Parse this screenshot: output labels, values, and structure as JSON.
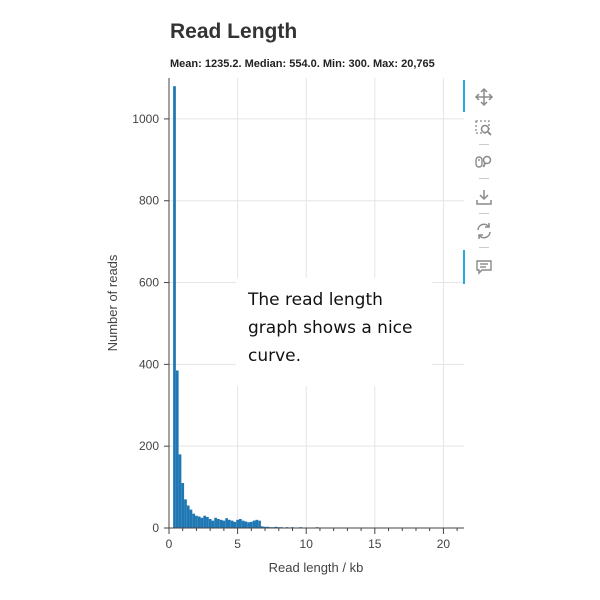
{
  "chart_data": {
    "type": "bar",
    "title": "Read Length",
    "subtitle": "Mean: 1235.2. Median: 554.0. Min: 300. Max: 20,765",
    "xlabel": "Read length / kb",
    "ylabel": "Number of reads",
    "xlim": [
      0,
      21.5
    ],
    "ylim": [
      0,
      1100
    ],
    "xticks": [
      "0",
      "5",
      "10",
      "15",
      "20"
    ],
    "yticks": [
      "0",
      "200",
      "400",
      "600",
      "800",
      "1000"
    ],
    "grid": true,
    "color": "#1f77b4",
    "bin_width_kb": 0.2,
    "bins_start_kb": [
      0.3,
      0.5,
      0.7,
      0.9,
      1.1,
      1.3,
      1.5,
      1.7,
      1.9,
      2.1,
      2.3,
      2.5,
      2.7,
      2.9,
      3.1,
      3.3,
      3.5,
      3.7,
      3.9,
      4.1,
      4.3,
      4.5,
      4.7,
      4.9,
      5.1,
      5.3,
      5.5,
      5.7,
      5.9,
      6.1,
      6.3,
      6.5,
      6.7,
      6.9,
      7.1,
      7.3,
      7.5,
      7.7,
      7.9,
      8.1,
      8.3,
      8.5,
      8.7,
      8.9,
      9.1,
      9.3,
      9.5,
      9.7,
      9.9,
      10.1,
      10.3,
      10.5,
      10.7,
      10.9,
      11.1,
      11.3,
      11.5,
      11.7,
      11.9,
      12.1,
      12.3,
      12.5,
      12.7,
      12.9,
      13.1,
      13.3,
      13.5,
      13.7,
      13.9,
      14.1,
      14.3,
      14.5,
      14.7,
      14.9,
      15.1,
      15.3,
      15.5,
      15.7,
      15.9,
      16.1,
      16.3,
      16.5,
      16.7,
      16.9,
      17.1,
      17.3,
      17.5,
      17.7,
      17.9,
      18.1,
      18.3,
      18.5,
      18.7,
      18.9,
      19.1,
      19.3,
      19.5,
      19.7,
      19.9,
      20.1,
      20.3,
      20.5
    ],
    "values": [
      1080,
      385,
      180,
      110,
      70,
      55,
      45,
      35,
      30,
      28,
      25,
      30,
      27,
      22,
      18,
      25,
      22,
      20,
      18,
      24,
      20,
      18,
      15,
      20,
      22,
      18,
      16,
      14,
      15,
      18,
      20,
      18,
      4,
      3,
      3,
      2,
      2,
      3,
      2,
      2,
      1,
      2,
      1,
      2,
      1,
      1,
      2,
      1,
      1,
      1,
      1,
      1,
      2,
      1,
      1,
      1,
      1,
      1,
      1,
      1,
      1,
      1,
      1,
      1,
      1,
      1,
      1,
      1,
      1,
      1,
      1,
      1,
      1,
      1,
      1,
      1,
      1,
      1,
      1,
      1,
      1,
      1,
      1,
      1,
      1,
      1,
      1,
      1,
      1,
      1,
      1,
      1,
      1,
      1,
      1,
      1,
      1,
      1,
      1,
      1,
      1
    ]
  },
  "toolbar": {
    "items": [
      "pan-icon",
      "box-zoom-icon",
      "wheel-zoom-icon",
      "save-icon",
      "reset-icon",
      "hover-icon"
    ]
  },
  "annotation": {
    "text": "The read length graph shows a nice curve."
  }
}
